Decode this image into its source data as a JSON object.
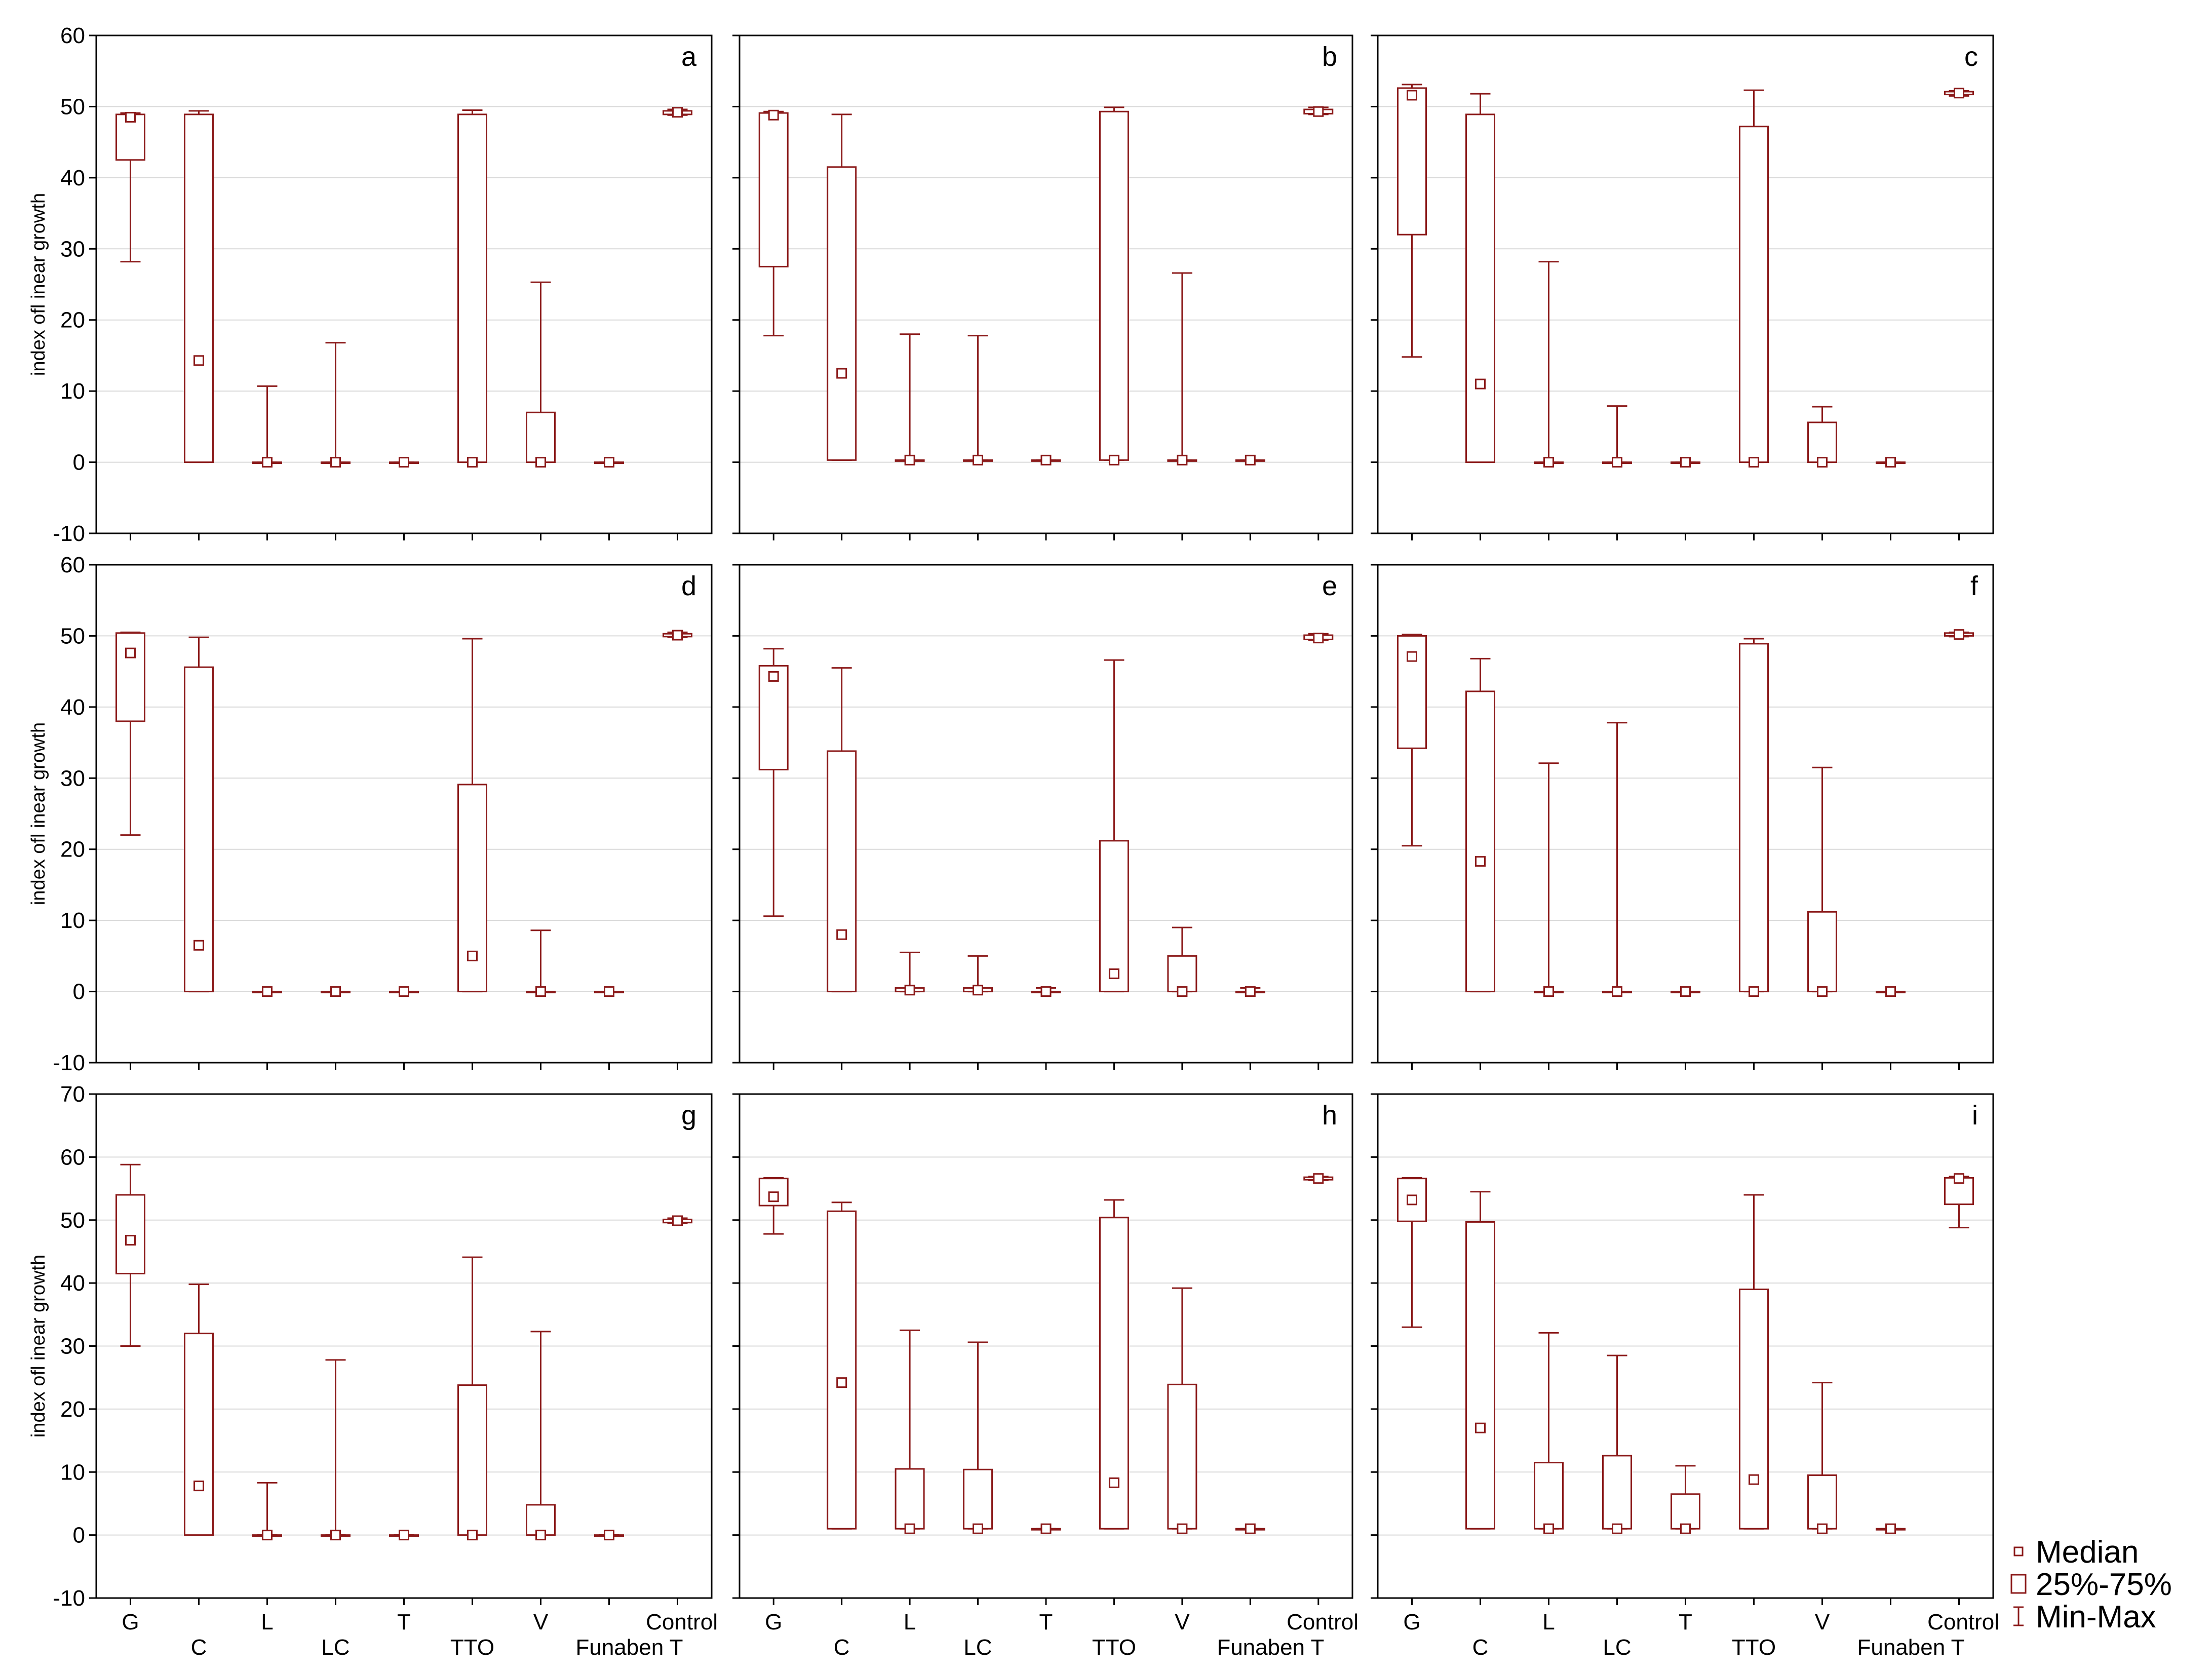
{
  "figure": {
    "ylabel": "index ofl inear growth",
    "categories_top_row": [
      "G",
      "L",
      "T",
      "V",
      "Control"
    ],
    "categories_bottom_row": [
      "C",
      "LC",
      "TTO",
      "Funaben T"
    ],
    "legend": [
      {
        "symbol": "median-square",
        "label": "Median"
      },
      {
        "symbol": "box",
        "label": "25%-75%"
      },
      {
        "symbol": "whisker",
        "label": "Min-Max"
      }
    ],
    "row_axes": [
      {
        "ylim": [
          -10,
          60
        ],
        "yticks": [
          "-10",
          "0",
          "10",
          "20",
          "30",
          "40",
          "50",
          "60"
        ]
      },
      {
        "ylim": [
          -10,
          60
        ],
        "yticks": [
          "-10",
          "0",
          "10",
          "20",
          "30",
          "40",
          "50",
          "60"
        ]
      },
      {
        "ylim": [
          -10,
          70
        ],
        "yticks": [
          "-10",
          "0",
          "10",
          "20",
          "30",
          "40",
          "50",
          "60",
          "70"
        ]
      }
    ],
    "color": "#8b1a1a",
    "grid_color": "#d9d9d9"
  },
  "chart_data": [
    {
      "type": "box",
      "label": "a",
      "row": 0,
      "col": 0,
      "categories": [
        "G",
        "C",
        "L",
        "LC",
        "T",
        "TTO",
        "V",
        "Funaben T",
        "Control"
      ],
      "ylim": [
        -10,
        60
      ],
      "min": [
        28.2,
        0,
        0,
        0,
        0,
        0,
        0,
        0,
        48.8
      ],
      "q1": [
        42.5,
        0,
        0,
        0,
        0,
        0,
        0,
        0,
        48.9
      ],
      "median": [
        48.5,
        14.3,
        0,
        0,
        0,
        0,
        0,
        0,
        49.2
      ],
      "q3": [
        48.9,
        48.9,
        0,
        0,
        0,
        48.9,
        7.0,
        0,
        49.4
      ],
      "max": [
        49.1,
        49.4,
        10.7,
        16.8,
        0,
        49.5,
        25.3,
        0,
        49.6
      ]
    },
    {
      "type": "box",
      "label": "b",
      "row": 0,
      "col": 1,
      "categories": [
        "G",
        "C",
        "L",
        "LC",
        "T",
        "TTO",
        "V",
        "Funaben T",
        "Control"
      ],
      "ylim": [
        -10,
        60
      ],
      "min": [
        17.8,
        0.3,
        0.3,
        0.3,
        0.3,
        0.3,
        0.3,
        0.3,
        48.9
      ],
      "q1": [
        27.5,
        0.3,
        0.3,
        0.3,
        0.3,
        0.3,
        0.3,
        0.3,
        49.0
      ],
      "median": [
        48.8,
        12.5,
        0.3,
        0.3,
        0.3,
        0.3,
        0.3,
        0.3,
        49.3
      ],
      "q3": [
        49.1,
        41.5,
        0.3,
        0.3,
        0.3,
        49.3,
        0.3,
        0.3,
        49.6
      ],
      "max": [
        49.3,
        48.9,
        18.0,
        17.8,
        0.3,
        49.9,
        26.6,
        0.3,
        49.9
      ]
    },
    {
      "type": "box",
      "label": "c",
      "row": 0,
      "col": 2,
      "categories": [
        "G",
        "C",
        "L",
        "LC",
        "T",
        "TTO",
        "V",
        "Funaben T",
        "Control"
      ],
      "ylim": [
        -10,
        60
      ],
      "min": [
        14.8,
        0,
        0,
        0,
        0,
        0,
        0,
        0,
        51.5
      ],
      "q1": [
        32.0,
        0,
        0,
        0,
        0,
        0,
        0,
        0,
        51.7
      ],
      "median": [
        51.6,
        11.0,
        0,
        0,
        0,
        0,
        0,
        0,
        51.9
      ],
      "q3": [
        52.6,
        48.9,
        0,
        0,
        0,
        47.2,
        5.6,
        0,
        52.1
      ],
      "max": [
        53.1,
        51.8,
        28.2,
        7.9,
        0,
        52.3,
        7.8,
        0,
        52.2
      ]
    },
    {
      "type": "box",
      "label": "d",
      "row": 1,
      "col": 0,
      "categories": [
        "G",
        "C",
        "L",
        "LC",
        "T",
        "TTO",
        "V",
        "Funaben T",
        "Control"
      ],
      "ylim": [
        -10,
        60
      ],
      "min": [
        22.0,
        0,
        0,
        0,
        0,
        0,
        0,
        0,
        49.8
      ],
      "q1": [
        38.0,
        0,
        0,
        0,
        0,
        0,
        0,
        0,
        49.9
      ],
      "median": [
        47.6,
        6.5,
        0,
        0,
        0,
        5.0,
        0,
        0,
        50.1
      ],
      "q3": [
        50.4,
        45.6,
        0,
        0,
        0,
        29.1,
        0,
        0,
        50.3
      ],
      "max": [
        50.5,
        49.8,
        0,
        0,
        0,
        49.6,
        8.6,
        0,
        50.5
      ]
    },
    {
      "type": "box",
      "label": "e",
      "row": 1,
      "col": 1,
      "categories": [
        "G",
        "C",
        "L",
        "LC",
        "T",
        "TTO",
        "V",
        "Funaben T",
        "Control"
      ],
      "ylim": [
        -10,
        60
      ],
      "min": [
        10.6,
        0,
        0,
        0,
        0,
        0,
        0,
        0,
        49.4
      ],
      "q1": [
        31.2,
        0,
        0,
        0,
        0,
        0,
        0,
        0,
        49.5
      ],
      "median": [
        44.3,
        8.0,
        0.2,
        0.2,
        0,
        2.5,
        0,
        0,
        49.7
      ],
      "q3": [
        45.8,
        33.8,
        0.5,
        0.5,
        0,
        21.2,
        5.0,
        0,
        50.1
      ],
      "max": [
        48.2,
        45.5,
        5.5,
        5.0,
        0.5,
        46.6,
        9.0,
        0.5,
        50.3
      ]
    },
    {
      "type": "box",
      "label": "f",
      "row": 1,
      "col": 2,
      "categories": [
        "G",
        "C",
        "L",
        "LC",
        "T",
        "TTO",
        "V",
        "Funaben T",
        "Control"
      ],
      "ylim": [
        -10,
        60
      ],
      "min": [
        20.5,
        0,
        0,
        0,
        0,
        0,
        0,
        0,
        49.9
      ],
      "q1": [
        34.2,
        0,
        0,
        0,
        0,
        0,
        0,
        0,
        50.0
      ],
      "median": [
        47.1,
        18.3,
        0,
        0,
        0,
        0,
        0,
        0,
        50.2
      ],
      "q3": [
        50.0,
        42.2,
        0,
        0,
        0,
        48.9,
        11.2,
        0,
        50.4
      ],
      "max": [
        50.2,
        46.8,
        32.1,
        37.8,
        0,
        49.6,
        31.5,
        0,
        50.5
      ]
    },
    {
      "type": "box",
      "label": "g",
      "row": 2,
      "col": 0,
      "categories": [
        "G",
        "C",
        "L",
        "LC",
        "T",
        "TTO",
        "V",
        "Funaben T",
        "Control"
      ],
      "ylim": [
        -10,
        70
      ],
      "min": [
        30.0,
        0,
        0,
        0,
        0,
        0,
        0,
        0,
        49.5
      ],
      "q1": [
        41.5,
        0,
        0,
        0,
        0,
        0,
        0,
        0,
        49.6
      ],
      "median": [
        46.8,
        7.8,
        0,
        0,
        0,
        0,
        0,
        0,
        49.9
      ],
      "q3": [
        54.0,
        32.0,
        0,
        0,
        0,
        23.8,
        4.8,
        0,
        50.1
      ],
      "max": [
        58.8,
        39.8,
        8.3,
        27.8,
        0,
        44.1,
        32.3,
        0,
        50.3
      ]
    },
    {
      "type": "box",
      "label": "h",
      "row": 2,
      "col": 1,
      "categories": [
        "G",
        "C",
        "L",
        "LC",
        "T",
        "TTO",
        "V",
        "Funaben T",
        "Control"
      ],
      "ylim": [
        -10,
        70
      ],
      "min": [
        47.8,
        1.0,
        1.0,
        1.0,
        1.0,
        1.0,
        1.0,
        1.0,
        56.3
      ],
      "q1": [
        52.3,
        1.0,
        1.0,
        1.0,
        1.0,
        1.0,
        1.0,
        1.0,
        56.4
      ],
      "median": [
        53.7,
        24.2,
        1.0,
        1.0,
        1.0,
        8.3,
        1.0,
        1.0,
        56.6
      ],
      "q3": [
        56.6,
        51.4,
        10.5,
        10.4,
        1.0,
        50.4,
        23.9,
        1.0,
        56.8
      ],
      "max": [
        56.7,
        52.8,
        32.5,
        30.6,
        1.0,
        53.2,
        39.2,
        1.0,
        56.9
      ]
    },
    {
      "type": "box",
      "label": "i",
      "row": 2,
      "col": 2,
      "categories": [
        "G",
        "C",
        "L",
        "LC",
        "T",
        "TTO",
        "V",
        "Funaben T",
        "Control"
      ],
      "ylim": [
        -10,
        70
      ],
      "min": [
        33.0,
        1.0,
        1.0,
        1.0,
        1.0,
        1.0,
        1.0,
        1.0,
        48.8
      ],
      "q1": [
        49.8,
        1.0,
        1.0,
        1.0,
        1.0,
        1.0,
        1.0,
        1.0,
        52.5
      ],
      "median": [
        53.2,
        17.0,
        1.0,
        1.0,
        1.0,
        8.8,
        1.0,
        1.0,
        56.6
      ],
      "q3": [
        56.6,
        49.7,
        11.5,
        12.6,
        6.5,
        39.0,
        9.5,
        1.0,
        56.7
      ],
      "max": [
        56.7,
        54.5,
        32.1,
        28.5,
        11.0,
        54.0,
        24.2,
        1.0,
        56.9
      ]
    }
  ]
}
